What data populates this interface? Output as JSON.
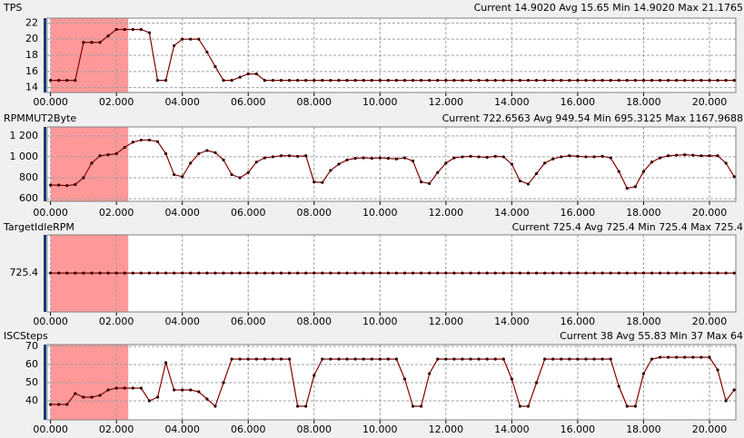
{
  "chart_data": [
    {
      "type": "line",
      "title": "TPS",
      "stats": "Current 14.9020 Avg 15.65 Min 14.9020 Max 21.1765",
      "x": [
        0,
        0.25,
        0.5,
        0.75,
        1,
        1.25,
        1.5,
        1.75,
        2,
        2.25,
        2.5,
        2.75,
        3,
        3.25,
        3.5,
        3.75,
        4,
        4.25,
        4.5,
        4.75,
        5,
        5.25,
        5.5,
        5.75,
        6,
        6.25,
        6.5,
        6.75,
        7,
        7.25,
        7.5,
        7.75,
        8,
        8.25,
        8.5,
        8.75,
        9,
        9.25,
        9.5,
        9.75,
        10,
        10.25,
        10.5,
        10.75,
        11,
        11.25,
        11.5,
        11.75,
        12,
        12.25,
        12.5,
        12.75,
        13,
        13.25,
        13.5,
        13.75,
        14,
        14.25,
        14.5,
        14.75,
        15,
        15.25,
        15.5,
        15.75,
        16,
        16.25,
        16.5,
        16.75,
        17,
        17.25,
        17.5,
        17.75,
        18,
        18.25,
        18.5,
        18.75,
        19,
        19.25,
        19.5,
        19.75,
        20,
        20.25,
        20.5,
        20.75
      ],
      "series": [
        {
          "name": "TPS",
          "color": "#8b0000",
          "values": [
            14.9,
            14.9,
            14.9,
            14.9,
            19.6,
            19.6,
            19.6,
            20.4,
            21.2,
            21.2,
            21.2,
            21.2,
            20.8,
            14.9,
            14.9,
            19.2,
            20,
            20,
            20,
            18.4,
            16.6,
            14.9,
            14.9,
            15.3,
            15.7,
            15.7,
            14.9,
            14.9,
            14.9,
            14.9,
            14.9,
            14.9,
            14.9,
            14.9,
            14.9,
            14.9,
            14.9,
            14.9,
            14.9,
            14.9,
            14.9,
            14.9,
            14.9,
            14.9,
            14.9,
            14.9,
            14.9,
            14.9,
            14.9,
            14.9,
            14.9,
            14.9,
            14.9,
            14.9,
            14.9,
            14.9,
            14.9,
            14.9,
            14.9,
            14.9,
            14.9,
            14.9,
            14.9,
            14.9,
            14.9,
            14.9,
            14.9,
            14.9,
            14.9,
            14.9,
            14.9,
            14.9,
            14.9,
            14.9,
            14.9,
            14.9,
            14.9,
            14.9,
            14.9,
            14.9,
            14.9,
            14.9,
            14.9,
            14.9
          ]
        }
      ],
      "xlim": [
        -0.1,
        20.8
      ],
      "ylim": [
        13.4,
        22.6
      ],
      "yticks": [
        14,
        16,
        18,
        20,
        22
      ],
      "xticks": [
        {
          "value": 0,
          "label": "00.000"
        },
        {
          "value": 2,
          "label": "02.000"
        },
        {
          "value": 4,
          "label": "04.000"
        },
        {
          "value": 6,
          "label": "06.000"
        },
        {
          "value": 8,
          "label": "08.000"
        },
        {
          "value": 10,
          "label": "10.000"
        },
        {
          "value": 12,
          "label": "12.000"
        },
        {
          "value": 14,
          "label": "14.000"
        },
        {
          "value": 16,
          "label": "16.000"
        },
        {
          "value": 18,
          "label": "18.000"
        },
        {
          "value": 20,
          "label": "20.000"
        }
      ],
      "shaded_range": [
        0,
        2.36
      ],
      "shade_color": "#ff9999",
      "grid": true
    },
    {
      "type": "line",
      "title": "RPMMUT2Byte",
      "stats": "Current 722.6563 Avg 949.54 Min 695.3125 Max 1167.9688",
      "x": [
        0,
        0.25,
        0.5,
        0.75,
        1,
        1.25,
        1.5,
        1.75,
        2,
        2.25,
        2.5,
        2.75,
        3,
        3.25,
        3.5,
        3.75,
        4,
        4.25,
        4.5,
        4.75,
        5,
        5.25,
        5.5,
        5.75,
        6,
        6.25,
        6.5,
        6.75,
        7,
        7.25,
        7.5,
        7.75,
        8,
        8.25,
        8.5,
        8.75,
        9,
        9.25,
        9.5,
        9.75,
        10,
        10.25,
        10.5,
        10.75,
        11,
        11.25,
        11.5,
        11.75,
        12,
        12.25,
        12.5,
        12.75,
        13,
        13.25,
        13.5,
        13.75,
        14,
        14.25,
        14.5,
        14.75,
        15,
        15.25,
        15.5,
        15.75,
        16,
        16.25,
        16.5,
        16.75,
        17,
        17.25,
        17.5,
        17.75,
        18,
        18.25,
        18.5,
        18.75,
        19,
        19.25,
        19.5,
        19.75,
        20,
        20.25,
        20.5,
        20.75
      ],
      "series": [
        {
          "name": "RPMMUT2Byte",
          "color": "#8b0000",
          "values": [
            730,
            730,
            725,
            735,
            800,
            940,
            1010,
            1020,
            1030,
            1090,
            1140,
            1160,
            1160,
            1145,
            1030,
            830,
            810,
            940,
            1030,
            1060,
            1040,
            970,
            830,
            800,
            850,
            950,
            990,
            1000,
            1010,
            1010,
            1005,
            1010,
            760,
            755,
            870,
            930,
            970,
            985,
            990,
            985,
            990,
            985,
            980,
            990,
            960,
            760,
            745,
            850,
            940,
            990,
            1000,
            1005,
            1000,
            995,
            1005,
            1000,
            930,
            770,
            740,
            840,
            940,
            980,
            1000,
            1010,
            1005,
            1000,
            1000,
            1005,
            990,
            860,
            700,
            715,
            860,
            950,
            990,
            1010,
            1015,
            1020,
            1015,
            1010,
            1010,
            1010,
            940,
            810
          ]
        }
      ],
      "xlim": [
        -0.1,
        20.8
      ],
      "ylim": [
        575,
        1285
      ],
      "yticks": [
        600,
        800,
        {
          "value": 1000,
          "label": "1 000"
        },
        {
          "value": 1200,
          "label": "1 200"
        }
      ],
      "xticks": [
        {
          "value": 0,
          "label": "00.000"
        },
        {
          "value": 2,
          "label": "02.000"
        },
        {
          "value": 4,
          "label": "04.000"
        },
        {
          "value": 6,
          "label": "06.000"
        },
        {
          "value": 8,
          "label": "08.000"
        },
        {
          "value": 10,
          "label": "10.000"
        },
        {
          "value": 12,
          "label": "12.000"
        },
        {
          "value": 14,
          "label": "14.000"
        },
        {
          "value": 16,
          "label": "16.000"
        },
        {
          "value": 18,
          "label": "18.000"
        },
        {
          "value": 20,
          "label": "20.000"
        }
      ],
      "shaded_range": [
        0,
        2.36
      ],
      "shade_color": "#ff9999",
      "grid": true
    },
    {
      "type": "line",
      "title": "TargetIdleRPM",
      "stats": "Current 725.4 Avg 725.4 Min 725.4 Max 725.4",
      "x": [
        0,
        0.25,
        0.5,
        0.75,
        1,
        1.25,
        1.5,
        1.75,
        2,
        2.25,
        2.5,
        2.75,
        3,
        3.25,
        3.5,
        3.75,
        4,
        4.25,
        4.5,
        4.75,
        5,
        5.25,
        5.5,
        5.75,
        6,
        6.25,
        6.5,
        6.75,
        7,
        7.25,
        7.5,
        7.75,
        8,
        8.25,
        8.5,
        8.75,
        9,
        9.25,
        9.5,
        9.75,
        10,
        10.25,
        10.5,
        10.75,
        11,
        11.25,
        11.5,
        11.75,
        12,
        12.25,
        12.5,
        12.75,
        13,
        13.25,
        13.5,
        13.75,
        14,
        14.25,
        14.5,
        14.75,
        15,
        15.25,
        15.5,
        15.75,
        16,
        16.25,
        16.5,
        16.75,
        17,
        17.25,
        17.5,
        17.75,
        18,
        18.25,
        18.5,
        18.75,
        19,
        19.25,
        19.5,
        19.75,
        20,
        20.25,
        20.5,
        20.75
      ],
      "series": [
        {
          "name": "TargetIdleRPM",
          "color": "#8b0000",
          "values": [
            725.4,
            725.4,
            725.4,
            725.4,
            725.4,
            725.4,
            725.4,
            725.4,
            725.4,
            725.4,
            725.4,
            725.4,
            725.4,
            725.4,
            725.4,
            725.4,
            725.4,
            725.4,
            725.4,
            725.4,
            725.4,
            725.4,
            725.4,
            725.4,
            725.4,
            725.4,
            725.4,
            725.4,
            725.4,
            725.4,
            725.4,
            725.4,
            725.4,
            725.4,
            725.4,
            725.4,
            725.4,
            725.4,
            725.4,
            725.4,
            725.4,
            725.4,
            725.4,
            725.4,
            725.4,
            725.4,
            725.4,
            725.4,
            725.4,
            725.4,
            725.4,
            725.4,
            725.4,
            725.4,
            725.4,
            725.4,
            725.4,
            725.4,
            725.4,
            725.4,
            725.4,
            725.4,
            725.4,
            725.4,
            725.4,
            725.4,
            725.4,
            725.4,
            725.4,
            725.4,
            725.4,
            725.4,
            725.4,
            725.4,
            725.4,
            725.4,
            725.4,
            725.4,
            725.4,
            725.4,
            725.4,
            725.4,
            725.4,
            725.4
          ]
        }
      ],
      "xlim": [
        -0.1,
        20.8
      ],
      "ylim": [
        684,
        766
      ],
      "yticks": [
        725.4
      ],
      "xticks": [
        {
          "value": 0,
          "label": "00.000"
        },
        {
          "value": 2,
          "label": "02.000"
        },
        {
          "value": 4,
          "label": "04.000"
        },
        {
          "value": 6,
          "label": "06.000"
        },
        {
          "value": 8,
          "label": "08.000"
        },
        {
          "value": 10,
          "label": "10.000"
        },
        {
          "value": 12,
          "label": "12.000"
        },
        {
          "value": 14,
          "label": "14.000"
        },
        {
          "value": 16,
          "label": "16.000"
        },
        {
          "value": 18,
          "label": "18.000"
        },
        {
          "value": 20,
          "label": "20.000"
        }
      ],
      "shaded_range": [
        0,
        2.36
      ],
      "shade_color": "#ff9999",
      "grid": true
    },
    {
      "type": "line",
      "title": "ISCSteps",
      "stats": "Current 38 Avg 55.83 Min 37 Max 64",
      "x": [
        0,
        0.25,
        0.5,
        0.75,
        1,
        1.25,
        1.5,
        1.75,
        2,
        2.25,
        2.5,
        2.75,
        3,
        3.25,
        3.5,
        3.75,
        4,
        4.25,
        4.5,
        4.75,
        5,
        5.25,
        5.5,
        5.75,
        6,
        6.25,
        6.5,
        6.75,
        7,
        7.25,
        7.5,
        7.75,
        8,
        8.25,
        8.5,
        8.75,
        9,
        9.25,
        9.5,
        9.75,
        10,
        10.25,
        10.5,
        10.75,
        11,
        11.25,
        11.5,
        11.75,
        12,
        12.25,
        12.5,
        12.75,
        13,
        13.25,
        13.5,
        13.75,
        14,
        14.25,
        14.5,
        14.75,
        15,
        15.25,
        15.5,
        15.75,
        16,
        16.25,
        16.5,
        16.75,
        17,
        17.25,
        17.5,
        17.75,
        18,
        18.25,
        18.5,
        18.75,
        19,
        19.25,
        19.5,
        19.75,
        20,
        20.25,
        20.5,
        20.75
      ],
      "series": [
        {
          "name": "ISCSteps",
          "color": "#8b0000",
          "values": [
            38,
            38,
            38,
            44,
            42,
            42,
            43,
            46,
            47,
            47,
            47,
            47,
            40,
            42,
            61,
            46,
            46,
            46,
            45,
            41,
            37,
            50,
            63,
            63,
            63,
            63,
            63,
            63,
            63,
            63,
            37,
            37,
            54,
            63,
            63,
            63,
            63,
            63,
            63,
            63,
            63,
            63,
            63,
            52,
            37,
            37,
            55,
            63,
            63,
            63,
            63,
            63,
            63,
            63,
            63,
            63,
            52,
            37,
            37,
            50,
            63,
            63,
            63,
            63,
            63,
            63,
            63,
            63,
            63,
            48,
            37,
            37,
            55,
            63,
            64,
            64,
            64,
            64,
            64,
            64,
            64,
            57,
            40,
            46
          ]
        }
      ],
      "xlim": [
        -0.1,
        20.8
      ],
      "ylim": [
        29.5,
        71
      ],
      "yticks": [
        40,
        50,
        60,
        70
      ],
      "xticks": [
        {
          "value": 0,
          "label": "00.000"
        },
        {
          "value": 2,
          "label": "02.000"
        },
        {
          "value": 4,
          "label": "04.000"
        },
        {
          "value": 6,
          "label": "06.000"
        },
        {
          "value": 8,
          "label": "08.000"
        },
        {
          "value": 10,
          "label": "10.000"
        },
        {
          "value": 12,
          "label": "12.000"
        },
        {
          "value": 14,
          "label": "14.000"
        },
        {
          "value": 16,
          "label": "16.000"
        },
        {
          "value": 18,
          "label": "18.000"
        },
        {
          "value": 20,
          "label": "20.000"
        }
      ],
      "shaded_range": [
        0,
        2.36
      ],
      "shade_color": "#ff9999",
      "grid": true
    }
  ]
}
